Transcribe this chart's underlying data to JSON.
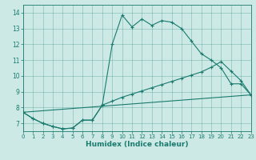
{
  "xlabel": "Humidex (Indice chaleur)",
  "xlim": [
    0,
    23
  ],
  "ylim": [
    6.5,
    14.5
  ],
  "xticks": [
    0,
    1,
    2,
    3,
    4,
    5,
    6,
    7,
    8,
    9,
    10,
    11,
    12,
    13,
    14,
    15,
    16,
    17,
    18,
    19,
    20,
    21,
    22,
    23
  ],
  "yticks": [
    7,
    8,
    9,
    10,
    11,
    12,
    13,
    14
  ],
  "bg_color": "#cce9e5",
  "line_color": "#1a7a6e",
  "line1_x": [
    0,
    1,
    2,
    3,
    4,
    5,
    6,
    7,
    8,
    9,
    10,
    11,
    12,
    13,
    14,
    15,
    16,
    17,
    18,
    19,
    20,
    21,
    22,
    23
  ],
  "line1_y": [
    7.7,
    7.3,
    7.0,
    6.8,
    6.65,
    6.7,
    7.2,
    7.2,
    8.15,
    12.0,
    13.85,
    13.1,
    13.6,
    13.2,
    13.5,
    13.4,
    13.0,
    12.2,
    11.4,
    11.0,
    10.5,
    9.5,
    9.5,
    8.8
  ],
  "line2_x": [
    0,
    1,
    2,
    3,
    4,
    5,
    6,
    7,
    8,
    9,
    10,
    11,
    12,
    13,
    14,
    15,
    16,
    17,
    18,
    19,
    20,
    21,
    22,
    23
  ],
  "line2_y": [
    7.7,
    7.3,
    7.0,
    6.8,
    6.65,
    6.7,
    7.2,
    7.2,
    8.15,
    8.4,
    8.65,
    8.85,
    9.05,
    9.25,
    9.45,
    9.65,
    9.85,
    10.05,
    10.25,
    10.55,
    10.9,
    10.3,
    9.7,
    8.8
  ],
  "line3_x": [
    0,
    23
  ],
  "line3_y": [
    7.7,
    8.8
  ]
}
